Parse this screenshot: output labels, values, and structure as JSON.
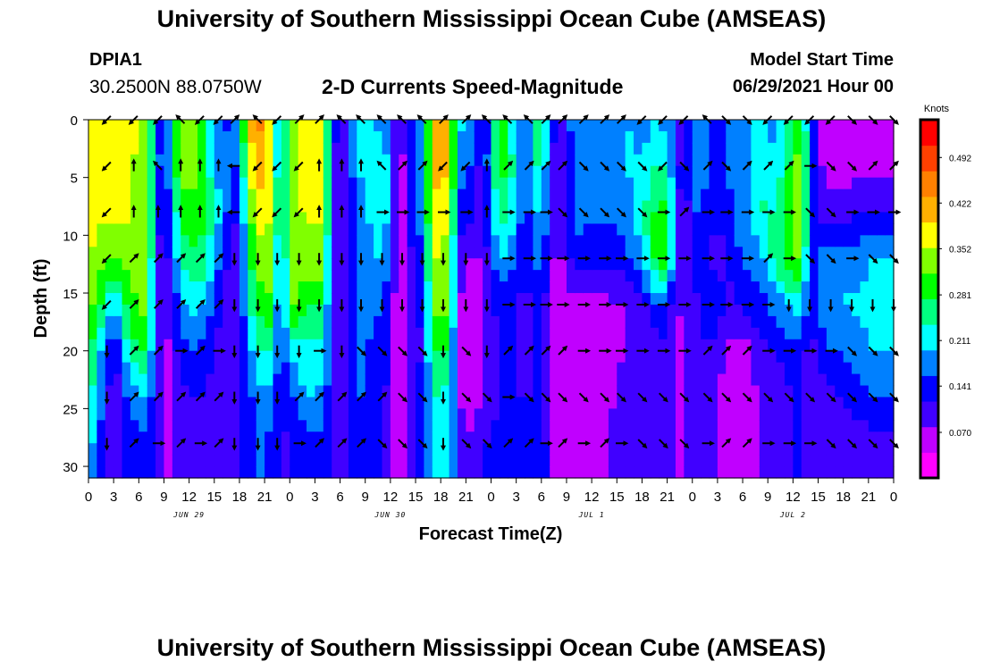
{
  "header": {
    "title": "University of Southern Mississippi Ocean Cube (AMSEAS)",
    "footer_title": "University of Southern Mississippi Ocean Cube (AMSEAS)",
    "station_id": "DPIA1",
    "station_coords": "30.2500N  88.0750W",
    "model_start_label": "Model Start Time",
    "model_start_value": "06/29/2021 Hour 00"
  },
  "chart_data": {
    "type": "heatmap",
    "title": "2-D Currents Speed-Magnitude",
    "xlabel": "Forecast Time(Z)",
    "ylabel": "Depth (ft)",
    "xlim": [
      0,
      96
    ],
    "ylim": [
      0,
      31
    ],
    "y_inverted": true,
    "x_tick_labels": [
      "0",
      "3",
      "6",
      "9",
      "12",
      "15",
      "18",
      "21",
      "0",
      "3",
      "6",
      "9",
      "12",
      "15",
      "18",
      "21",
      "0",
      "3",
      "6",
      "9",
      "12",
      "15",
      "18",
      "21",
      "0",
      "3",
      "6",
      "9",
      "12",
      "15",
      "18",
      "21",
      "0"
    ],
    "y_ticks": [
      0,
      5,
      10,
      15,
      20,
      25,
      30
    ],
    "date_labels": [
      {
        "text": "JUN 29",
        "hour": 12
      },
      {
        "text": "JUN 30",
        "hour": 36
      },
      {
        "text": "JUL 1",
        "hour": 60
      },
      {
        "text": "JUL 2",
        "hour": 84
      }
    ],
    "colorbar": {
      "unit": "Knots",
      "range": [
        0,
        0.55
      ],
      "tick_values": [
        0.07,
        0.141,
        0.211,
        0.281,
        0.352,
        0.422,
        0.492
      ],
      "tick_labels": [
        "0.070",
        "0.141",
        "0.211",
        "0.281",
        "0.352",
        "0.422",
        "0.492"
      ],
      "colors": [
        "#ff00ff",
        "#c000ff",
        "#4000ff",
        "#0000ff",
        "#0080ff",
        "#00ffff",
        "#00ff80",
        "#00ff00",
        "#80ff00",
        "#ffff00",
        "#ffb000",
        "#ff8000",
        "#ff4000",
        "#ff0000"
      ]
    },
    "vector_depths_ft": [
      0,
      4,
      8,
      12,
      16,
      20,
      24,
      28
    ],
    "speed_profiles": [
      {
        "hour": 0,
        "speeds": [
          0.35,
          0.36,
          0.36,
          0.36,
          0.34,
          0.3,
          0.26,
          0.22
        ]
      },
      {
        "hour": 3,
        "speeds": [
          0.38,
          0.38,
          0.36,
          0.3,
          0.2,
          0.1,
          0.08,
          0.07
        ]
      },
      {
        "hour": 5,
        "speeds": [
          0.36,
          0.36,
          0.36,
          0.34,
          0.3,
          0.25,
          0.18,
          0.14
        ]
      },
      {
        "hour": 7,
        "speeds": [
          0.35,
          0.33,
          0.33,
          0.35,
          0.33,
          0.28,
          0.2,
          0.14
        ]
      },
      {
        "hour": 8,
        "speeds": [
          0.18,
          0.2,
          0.16,
          0.12,
          0.12,
          0.12,
          0.12,
          0.12
        ]
      },
      {
        "hour": 9,
        "speeds": [
          0.12,
          0.12,
          0.1,
          0.08,
          0.06,
          0.05,
          0.05,
          0.06
        ]
      },
      {
        "hour": 10,
        "speeds": [
          0.2,
          0.22,
          0.18,
          0.15,
          0.12,
          0.1,
          0.09,
          0.09
        ]
      },
      {
        "hour": 11,
        "speeds": [
          0.35,
          0.34,
          0.3,
          0.24,
          0.18,
          0.14,
          0.11,
          0.1
        ]
      },
      {
        "hour": 13,
        "speeds": [
          0.33,
          0.32,
          0.3,
          0.28,
          0.22,
          0.16,
          0.12,
          0.11
        ]
      },
      {
        "hour": 15,
        "speeds": [
          0.18,
          0.2,
          0.24,
          0.2,
          0.15,
          0.12,
          0.1,
          0.1
        ]
      },
      {
        "hour": 16,
        "speeds": [
          0.14,
          0.16,
          0.18,
          0.14,
          0.1,
          0.1,
          0.1,
          0.1
        ]
      },
      {
        "hour": 17,
        "speeds": [
          0.16,
          0.18,
          0.14,
          0.11,
          0.09,
          0.1,
          0.1,
          0.11
        ]
      },
      {
        "hour": 18,
        "speeds": [
          0.22,
          0.14,
          0.11,
          0.1,
          0.11,
          0.1,
          0.12,
          0.12
        ]
      },
      {
        "hour": 19,
        "speeds": [
          0.4,
          0.35,
          0.3,
          0.26,
          0.22,
          0.18,
          0.14,
          0.12
        ]
      },
      {
        "hour": 21,
        "speeds": [
          0.45,
          0.44,
          0.4,
          0.36,
          0.32,
          0.26,
          0.2,
          0.17
        ]
      },
      {
        "hour": 22,
        "speeds": [
          0.3,
          0.3,
          0.32,
          0.32,
          0.28,
          0.22,
          0.18,
          0.13
        ]
      },
      {
        "hour": 23,
        "speeds": [
          0.17,
          0.17,
          0.16,
          0.14,
          0.12,
          0.12,
          0.11,
          0.11
        ]
      },
      {
        "hour": 24,
        "speeds": [
          0.34,
          0.33,
          0.33,
          0.33,
          0.33,
          0.22,
          0.14,
          0.12
        ]
      },
      {
        "hour": 26,
        "speeds": [
          0.38,
          0.38,
          0.36,
          0.34,
          0.28,
          0.22,
          0.2,
          0.14
        ]
      },
      {
        "hour": 28,
        "speeds": [
          0.37,
          0.36,
          0.36,
          0.34,
          0.28,
          0.22,
          0.18,
          0.15
        ]
      },
      {
        "hour": 29,
        "speeds": [
          0.18,
          0.14,
          0.12,
          0.12,
          0.12,
          0.12,
          0.12,
          0.12
        ]
      },
      {
        "hour": 30,
        "speeds": [
          0.08,
          0.06,
          0.06,
          0.06,
          0.06,
          0.06,
          0.07,
          0.08
        ]
      },
      {
        "hour": 31,
        "speeds": [
          0.16,
          0.14,
          0.13,
          0.12,
          0.13,
          0.15,
          0.14,
          0.14
        ]
      },
      {
        "hour": 33,
        "speeds": [
          0.24,
          0.22,
          0.2,
          0.2,
          0.2,
          0.18,
          0.16,
          0.14
        ]
      },
      {
        "hour": 34,
        "speeds": [
          0.16,
          0.18,
          0.2,
          0.18,
          0.14,
          0.12,
          0.12,
          0.12
        ]
      },
      {
        "hour": 35,
        "speeds": [
          0.22,
          0.25,
          0.26,
          0.22,
          0.18,
          0.16,
          0.14,
          0.13
        ]
      },
      {
        "hour": 37,
        "speeds": [
          0.06,
          0.05,
          0.04,
          0.04,
          0.04,
          0.04,
          0.04,
          0.05
        ]
      },
      {
        "hour": 39,
        "speeds": [
          0.15,
          0.16,
          0.16,
          0.14,
          0.12,
          0.11,
          0.12,
          0.13
        ]
      },
      {
        "hour": 40,
        "speeds": [
          0.22,
          0.2,
          0.18,
          0.15,
          0.12,
          0.12,
          0.13,
          0.13
        ]
      },
      {
        "hour": 41,
        "speeds": [
          0.4,
          0.42,
          0.38,
          0.36,
          0.32,
          0.28,
          0.24,
          0.22
        ]
      },
      {
        "hour": 43,
        "speeds": [
          0.42,
          0.4,
          0.36,
          0.34,
          0.32,
          0.28,
          0.22,
          0.2
        ]
      },
      {
        "hour": 44,
        "speeds": [
          0.2,
          0.18,
          0.14,
          0.1,
          0.09,
          0.09,
          0.1,
          0.13
        ]
      },
      {
        "hour": 45,
        "speeds": [
          0.2,
          0.18,
          0.14,
          0.08,
          0.06,
          0.05,
          0.05,
          0.07
        ]
      },
      {
        "hour": 47,
        "speeds": [
          0.12,
          0.1,
          0.09,
          0.08,
          0.07,
          0.07,
          0.08,
          0.12
        ]
      },
      {
        "hour": 48,
        "speeds": [
          0.18,
          0.22,
          0.18,
          0.14,
          0.1,
          0.09,
          0.09,
          0.12
        ]
      },
      {
        "hour": 49,
        "speeds": [
          0.3,
          0.3,
          0.26,
          0.2,
          0.14,
          0.12,
          0.12,
          0.14
        ]
      },
      {
        "hour": 51,
        "speeds": [
          0.2,
          0.22,
          0.2,
          0.16,
          0.12,
          0.12,
          0.12,
          0.14
        ]
      },
      {
        "hour": 52,
        "speeds": [
          0.14,
          0.14,
          0.13,
          0.12,
          0.1,
          0.1,
          0.11,
          0.14
        ]
      },
      {
        "hour": 53,
        "speeds": [
          0.22,
          0.22,
          0.18,
          0.15,
          0.12,
          0.12,
          0.12,
          0.14
        ]
      },
      {
        "hour": 54,
        "speeds": [
          0.28,
          0.26,
          0.22,
          0.18,
          0.14,
          0.12,
          0.12,
          0.14
        ]
      },
      {
        "hour": 55,
        "speeds": [
          0.16,
          0.14,
          0.12,
          0.1,
          0.08,
          0.08,
          0.08,
          0.1
        ]
      },
      {
        "hour": 56,
        "speeds": [
          0.09,
          0.08,
          0.07,
          0.06,
          0.05,
          0.04,
          0.04,
          0.05
        ]
      },
      {
        "hour": 58,
        "speeds": [
          0.18,
          0.18,
          0.17,
          0.14,
          0.06,
          0.04,
          0.04,
          0.05
        ]
      },
      {
        "hour": 62,
        "speeds": [
          0.18,
          0.18,
          0.16,
          0.13,
          0.07,
          0.06,
          0.07,
          0.08
        ]
      },
      {
        "hour": 64,
        "speeds": [
          0.2,
          0.2,
          0.18,
          0.14,
          0.08,
          0.08,
          0.09,
          0.1
        ]
      },
      {
        "hour": 66,
        "speeds": [
          0.18,
          0.2,
          0.22,
          0.2,
          0.1,
          0.09,
          0.1,
          0.1
        ]
      },
      {
        "hour": 68,
        "speeds": [
          0.2,
          0.24,
          0.3,
          0.32,
          0.16,
          0.1,
          0.1,
          0.1
        ]
      },
      {
        "hour": 69,
        "speeds": [
          0.18,
          0.22,
          0.28,
          0.28,
          0.14,
          0.1,
          0.1,
          0.1
        ]
      },
      {
        "hour": 70,
        "speeds": [
          0.14,
          0.16,
          0.16,
          0.14,
          0.1,
          0.08,
          0.08,
          0.08
        ]
      },
      {
        "hour": 71,
        "speeds": [
          0.06,
          0.08,
          0.07,
          0.06,
          0.06,
          0.06,
          0.06,
          0.07
        ]
      },
      {
        "hour": 72,
        "speeds": [
          0.18,
          0.18,
          0.16,
          0.14,
          0.1,
          0.1,
          0.1,
          0.1
        ]
      },
      {
        "hour": 74,
        "speeds": [
          0.16,
          0.16,
          0.14,
          0.12,
          0.14,
          0.12,
          0.1,
          0.1
        ]
      },
      {
        "hour": 75,
        "speeds": [
          0.14,
          0.14,
          0.12,
          0.1,
          0.16,
          0.1,
          0.08,
          0.08
        ]
      },
      {
        "hour": 76,
        "speeds": [
          0.16,
          0.16,
          0.14,
          0.12,
          0.1,
          0.07,
          0.06,
          0.07
        ]
      },
      {
        "hour": 78,
        "speeds": [
          0.18,
          0.18,
          0.18,
          0.16,
          0.12,
          0.06,
          0.05,
          0.06
        ]
      },
      {
        "hour": 80,
        "speeds": [
          0.2,
          0.22,
          0.24,
          0.18,
          0.14,
          0.1,
          0.08,
          0.08
        ]
      },
      {
        "hour": 82,
        "speeds": [
          0.18,
          0.2,
          0.24,
          0.26,
          0.18,
          0.12,
          0.1,
          0.1
        ]
      },
      {
        "hour": 84,
        "speeds": [
          0.26,
          0.3,
          0.34,
          0.32,
          0.2,
          0.14,
          0.12,
          0.12
        ]
      },
      {
        "hour": 85,
        "speeds": [
          0.3,
          0.34,
          0.36,
          0.32,
          0.22,
          0.14,
          0.12,
          0.12
        ]
      },
      {
        "hour": 86,
        "speeds": [
          0.16,
          0.16,
          0.14,
          0.14,
          0.12,
          0.1,
          0.08,
          0.08
        ]
      },
      {
        "hour": 88,
        "speeds": [
          0.05,
          0.05,
          0.1,
          0.18,
          0.18,
          0.16,
          0.1,
          0.08
        ]
      },
      {
        "hour": 90,
        "speeds": [
          0.06,
          0.05,
          0.1,
          0.18,
          0.2,
          0.16,
          0.12,
          0.1
        ]
      },
      {
        "hour": 92,
        "speeds": [
          0.06,
          0.06,
          0.12,
          0.18,
          0.2,
          0.18,
          0.14,
          0.1
        ]
      },
      {
        "hour": 94,
        "speeds": [
          0.06,
          0.06,
          0.12,
          0.2,
          0.22,
          0.2,
          0.16,
          0.1
        ]
      },
      {
        "hour": 96,
        "speeds": [
          0.07,
          0.07,
          0.12,
          0.2,
          0.22,
          0.2,
          0.16,
          0.11
        ]
      }
    ],
    "vector_hours": [
      2.2,
      5.4,
      8.3,
      11,
      13.3,
      15.5,
      17.4,
      20.2,
      22.5,
      25.1,
      27.5,
      30.2,
      32.5,
      35,
      37.4,
      39.8,
      42.3,
      45,
      47.5,
      50,
      52.5,
      54.5,
      56.5,
      59,
      61.5,
      63.5,
      66,
      68.5,
      71,
      73.8,
      76,
      78.5,
      81,
      83.5,
      86,
      88.5,
      91,
      93.5,
      96
    ],
    "vector_directions_deg": [
      [
        225,
        225,
        225,
        315,
        225,
        225,
        45,
        315,
        225,
        45,
        45,
        315,
        315,
        315,
        315,
        315,
        45,
        45,
        315,
        315,
        315,
        45,
        45,
        45,
        45,
        45,
        225,
        225,
        225,
        315,
        135,
        135,
        225,
        225,
        225,
        225,
        135,
        135,
        135
      ],
      [
        225,
        0,
        315,
        0,
        0,
        0,
        270,
        225,
        225,
        225,
        0,
        0,
        0,
        315,
        45,
        45,
        225,
        225,
        0,
        45,
        45,
        45,
        45,
        135,
        135,
        135,
        135,
        225,
        135,
        45,
        135,
        45,
        45,
        45,
        90,
        135,
        135,
        45,
        45
      ],
      [
        225,
        0,
        0,
        0,
        0,
        0,
        270,
        225,
        225,
        225,
        0,
        0,
        0,
        90,
        90,
        90,
        90,
        90,
        0,
        90,
        90,
        90,
        135,
        135,
        135,
        135,
        135,
        90,
        45,
        90,
        90,
        90,
        90,
        90,
        135,
        135,
        90,
        90,
        90
      ],
      [
        225,
        45,
        45,
        45,
        45,
        45,
        180,
        180,
        180,
        180,
        180,
        180,
        180,
        180,
        180,
        180,
        180,
        180,
        180,
        90,
        90,
        90,
        90,
        90,
        90,
        90,
        90,
        90,
        90,
        90,
        90,
        90,
        45,
        90,
        135,
        135,
        90,
        135,
        135
      ],
      [
        225,
        45,
        45,
        45,
        45,
        45,
        180,
        180,
        180,
        180,
        180,
        180,
        180,
        180,
        180,
        180,
        180,
        180,
        180,
        90,
        90,
        90,
        90,
        90,
        90,
        90,
        90,
        90,
        90,
        90,
        90,
        90,
        90,
        180,
        180,
        180,
        180,
        180,
        180
      ],
      [
        180,
        45,
        45,
        90,
        45,
        90,
        180,
        180,
        180,
        180,
        90,
        180,
        135,
        135,
        135,
        135,
        180,
        135,
        180,
        45,
        45,
        45,
        45,
        90,
        90,
        90,
        90,
        90,
        90,
        45,
        45,
        45,
        90,
        90,
        90,
        90,
        135,
        135,
        135
      ],
      [
        180,
        45,
        45,
        45,
        45,
        45,
        180,
        180,
        180,
        45,
        45,
        45,
        45,
        45,
        135,
        135,
        180,
        135,
        135,
        90,
        135,
        135,
        135,
        135,
        135,
        135,
        135,
        135,
        135,
        135,
        135,
        135,
        135,
        135,
        135,
        135,
        135,
        135,
        135
      ],
      [
        180,
        45,
        90,
        45,
        90,
        45,
        180,
        180,
        180,
        90,
        45,
        45,
        45,
        135,
        135,
        135,
        180,
        135,
        135,
        45,
        45,
        90,
        45,
        90,
        45,
        90,
        135,
        135,
        135,
        90,
        45,
        45,
        90,
        90,
        90,
        135,
        135,
        135,
        135
      ]
    ]
  }
}
